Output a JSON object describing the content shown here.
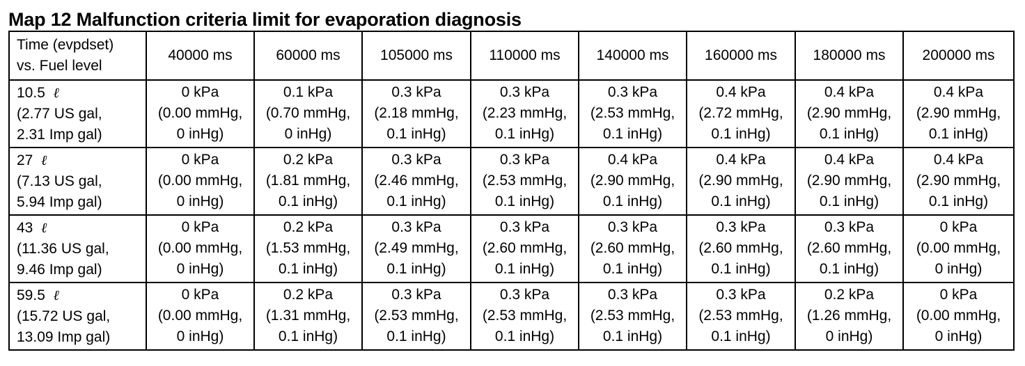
{
  "title": "Map 12 Malfunction criteria limit for evaporation diagnosis",
  "table": {
    "corner_line1": "Time (evpdset)",
    "corner_line2": "vs. Fuel level",
    "columns": [
      "40000 ms",
      "60000 ms",
      "105000 ms",
      "110000 ms",
      "140000 ms",
      "160000 ms",
      "180000 ms",
      "200000 ms"
    ],
    "rows": [
      {
        "level_value": "10.5",
        "liter_symbol": "ℓ",
        "us_gal": "(2.77 US gal,",
        "imp_gal": "2.31 Imp gal)",
        "cells": [
          [
            "0 kPa",
            "(0.00 mmHg,",
            "0 inHg)"
          ],
          [
            "0.1 kPa",
            "(0.70 mmHg,",
            "0 inHg)"
          ],
          [
            "0.3 kPa",
            "(2.18 mmHg,",
            "0.1 inHg)"
          ],
          [
            "0.3 kPa",
            "(2.23 mmHg,",
            "0.1 inHg)"
          ],
          [
            "0.3 kPa",
            "(2.53 mmHg,",
            "0.1 inHg)"
          ],
          [
            "0.4 kPa",
            "(2.72 mmHg,",
            "0.1 inHg)"
          ],
          [
            "0.4 kPa",
            "(2.90 mmHg,",
            "0.1 inHg)"
          ],
          [
            "0.4 kPa",
            "(2.90 mmHg,",
            "0.1 inHg)"
          ]
        ]
      },
      {
        "level_value": "27",
        "liter_symbol": "ℓ",
        "us_gal": "(7.13 US gal,",
        "imp_gal": "5.94 Imp gal)",
        "cells": [
          [
            "0 kPa",
            "(0.00 mmHg,",
            "0 inHg)"
          ],
          [
            "0.2 kPa",
            "(1.81 mmHg,",
            "0.1 inHg)"
          ],
          [
            "0.3 kPa",
            "(2.46 mmHg,",
            "0.1 inHg)"
          ],
          [
            "0.3 kPa",
            "(2.53 mmHg,",
            "0.1 inHg)"
          ],
          [
            "0.4 kPa",
            "(2.90 mmHg,",
            "0.1 inHg)"
          ],
          [
            "0.4 kPa",
            "(2.90 mmHg,",
            "0.1 inHg)"
          ],
          [
            "0.4 kPa",
            "(2.90 mmHg,",
            "0.1 inHg)"
          ],
          [
            "0.4 kPa",
            "(2.90 mmHg,",
            "0.1 inHg)"
          ]
        ]
      },
      {
        "level_value": "43",
        "liter_symbol": "ℓ",
        "us_gal": "(11.36 US gal,",
        "imp_gal": "9.46 Imp gal)",
        "cells": [
          [
            "0 kPa",
            "(0.00 mmHg,",
            "0 inHg)"
          ],
          [
            "0.2 kPa",
            "(1.53 mmHg,",
            "0.1 inHg)"
          ],
          [
            "0.3 kPa",
            "(2.49 mmHg,",
            "0.1 inHg)"
          ],
          [
            "0.3 kPa",
            "(2.60 mmHg,",
            "0.1 inHg)"
          ],
          [
            "0.3 kPa",
            "(2.60 mmHg,",
            "0.1 inHg)"
          ],
          [
            "0.3 kPa",
            "(2.60 mmHg,",
            "0.1 inHg)"
          ],
          [
            "0.3 kPa",
            "(2.60 mmHg,",
            "0.1 inHg)"
          ],
          [
            "0 kPa",
            "(0.00 mmHg,",
            "0 inHg)"
          ]
        ]
      },
      {
        "level_value": "59.5",
        "liter_symbol": "ℓ",
        "us_gal": "(15.72 US gal,",
        "imp_gal": "13.09 Imp gal)",
        "cells": [
          [
            "0 kPa",
            "(0.00 mmHg,",
            "0 inHg)"
          ],
          [
            "0.2 kPa",
            "(1.31 mmHg,",
            "0.1 inHg)"
          ],
          [
            "0.3 kPa",
            "(2.53 mmHg,",
            "0.1 inHg)"
          ],
          [
            "0.3 kPa",
            "(2.53 mmHg,",
            "0.1 inHg)"
          ],
          [
            "0.3 kPa",
            "(2.53 mmHg,",
            "0.1 inHg)"
          ],
          [
            "0.3 kPa",
            "(2.53 mmHg,",
            "0.1 inHg)"
          ],
          [
            "0.2 kPa",
            "(1.26 mmHg,",
            "0 inHg)"
          ],
          [
            "0 kPa",
            "(0.00 mmHg,",
            "0 inHg)"
          ]
        ]
      }
    ]
  }
}
